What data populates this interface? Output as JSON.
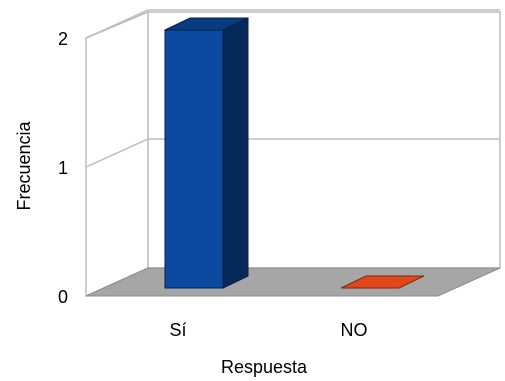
{
  "chart_data": {
    "type": "bar",
    "style": "3d-column",
    "categories": [
      "Sí",
      "NO"
    ],
    "values": [
      2,
      0
    ],
    "colors": [
      "#0b4aa0",
      "#e0481a"
    ],
    "xlabel": "Respuesta",
    "ylabel": "Frecuencia",
    "ylim": [
      0,
      2
    ],
    "yticks": [
      "0",
      "1",
      "2"
    ],
    "grid": true,
    "legend": "none"
  }
}
